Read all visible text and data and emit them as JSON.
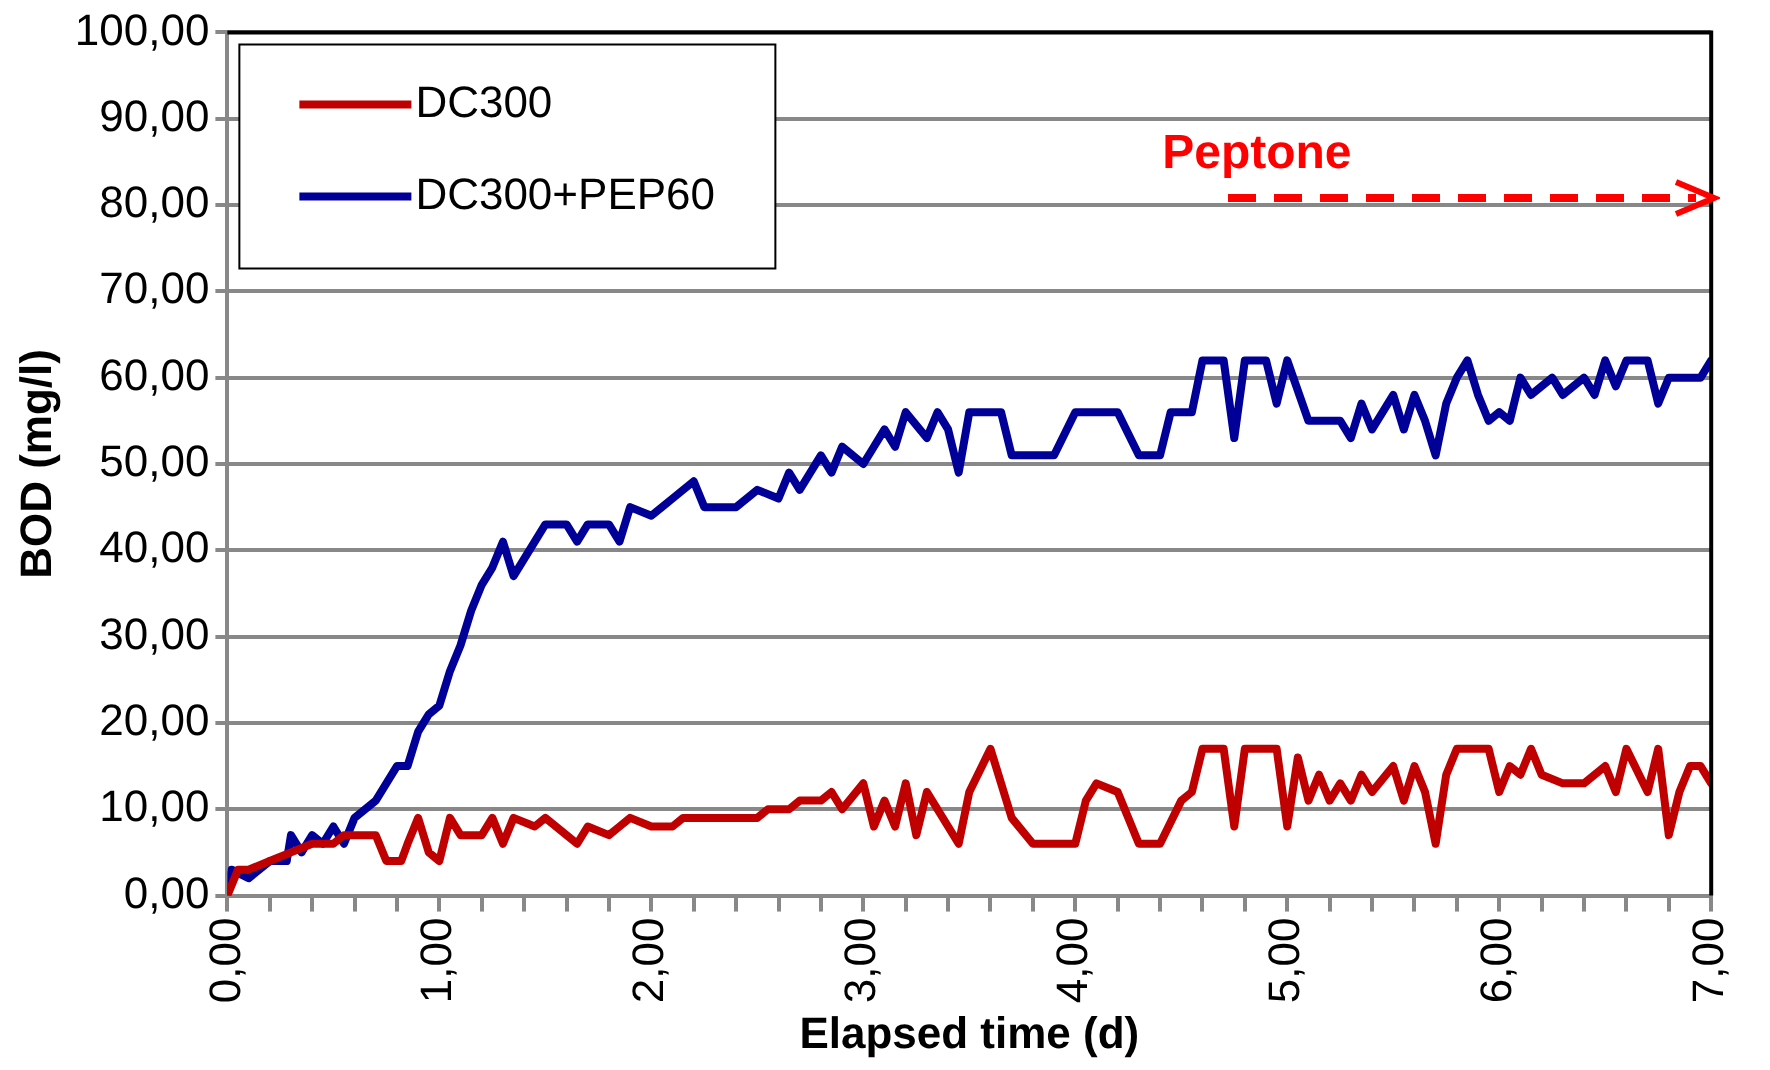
{
  "chart_data": {
    "type": "line",
    "xlabel": "Elapsed time (d)",
    "ylabel": "BOD (mg/l)",
    "xlim": [
      0,
      7
    ],
    "ylim": [
      0,
      100
    ],
    "xticks": [
      {
        "value": 0,
        "label": "0,00"
      },
      {
        "value": 0.2,
        "label": null
      },
      {
        "value": 0.4,
        "label": null
      },
      {
        "value": 0.6,
        "label": null
      },
      {
        "value": 0.8,
        "label": null
      },
      {
        "value": 1,
        "label": "1,00"
      },
      {
        "value": 1.2,
        "label": null
      },
      {
        "value": 1.4,
        "label": null
      },
      {
        "value": 1.6,
        "label": null
      },
      {
        "value": 1.8,
        "label": null
      },
      {
        "value": 2,
        "label": "2,00"
      },
      {
        "value": 2.2,
        "label": null
      },
      {
        "value": 2.4,
        "label": null
      },
      {
        "value": 2.6,
        "label": null
      },
      {
        "value": 2.8,
        "label": null
      },
      {
        "value": 3,
        "label": "3,00"
      },
      {
        "value": 3.2,
        "label": null
      },
      {
        "value": 3.4,
        "label": null
      },
      {
        "value": 3.6,
        "label": null
      },
      {
        "value": 3.8,
        "label": null
      },
      {
        "value": 4,
        "label": "4,00"
      },
      {
        "value": 4.2,
        "label": null
      },
      {
        "value": 4.4,
        "label": null
      },
      {
        "value": 4.6,
        "label": null
      },
      {
        "value": 4.8,
        "label": null
      },
      {
        "value": 5,
        "label": "5,00"
      },
      {
        "value": 5.2,
        "label": null
      },
      {
        "value": 5.4,
        "label": null
      },
      {
        "value": 5.6,
        "label": null
      },
      {
        "value": 5.8,
        "label": null
      },
      {
        "value": 6,
        "label": "6,00"
      },
      {
        "value": 6.2,
        "label": null
      },
      {
        "value": 6.4,
        "label": null
      },
      {
        "value": 6.6,
        "label": null
      },
      {
        "value": 6.8,
        "label": null
      },
      {
        "value": 7,
        "label": "7,00"
      }
    ],
    "yticks": [
      {
        "value": 0,
        "label": "0,00"
      },
      {
        "value": 10,
        "label": "10,00"
      },
      {
        "value": 20,
        "label": "20,00"
      },
      {
        "value": 30,
        "label": "30,00"
      },
      {
        "value": 40,
        "label": "40,00"
      },
      {
        "value": 50,
        "label": "50,00"
      },
      {
        "value": 60,
        "label": "60,00"
      },
      {
        "value": 70,
        "label": "70,00"
      },
      {
        "value": 80,
        "label": "80,00"
      },
      {
        "value": 90,
        "label": "90,00"
      },
      {
        "value": 100,
        "label": "100,00"
      }
    ],
    "grid": "y",
    "legend": "top left",
    "marker": "none",
    "line_style": "solid",
    "annotations": [
      "Peptone"
    ],
    "series": [
      {
        "name": "DC300",
        "color": "#c00000",
        "x": [
          0,
          0.05,
          0.1,
          0.2,
          0.3,
          0.4,
          0.5,
          0.55,
          0.7,
          0.75,
          0.82,
          0.85,
          0.9,
          0.95,
          1.0,
          1.05,
          1.1,
          1.2,
          1.25,
          1.3,
          1.35,
          1.45,
          1.5,
          1.6,
          1.65,
          1.7,
          1.8,
          1.85,
          1.9,
          2.0,
          2.1,
          2.15,
          2.25,
          2.5,
          2.55,
          2.65,
          2.7,
          2.8,
          2.85,
          2.9,
          3.0,
          3.05,
          3.1,
          3.15,
          3.2,
          3.25,
          3.3,
          3.4,
          3.45,
          3.5,
          3.6,
          3.7,
          3.8,
          4.0,
          4.05,
          4.1,
          4.2,
          4.3,
          4.4,
          4.5,
          4.55,
          4.6,
          4.7,
          4.75,
          4.8,
          4.95,
          5.0,
          5.05,
          5.1,
          5.15,
          5.2,
          5.25,
          5.3,
          5.35,
          5.4,
          5.5,
          5.55,
          5.6,
          5.65,
          5.7,
          5.75,
          5.8,
          5.95,
          6.0,
          6.05,
          6.1,
          6.15,
          6.2,
          6.3,
          6.4,
          6.5,
          6.55,
          6.6,
          6.7,
          6.75,
          6.8,
          6.85,
          6.9,
          6.95,
          7.0
        ],
        "values": [
          0,
          3,
          3,
          4,
          5,
          6,
          6,
          7,
          7,
          4,
          4,
          6,
          9,
          5,
          4,
          9,
          7,
          7,
          9,
          6,
          9,
          8,
          9,
          7,
          6,
          8,
          7,
          8,
          9,
          8,
          8,
          9,
          9,
          9,
          10,
          10,
          11,
          11,
          12,
          10,
          13,
          8,
          11,
          8,
          13,
          7,
          12,
          8,
          6,
          12,
          17,
          9,
          6,
          6,
          11,
          13,
          12,
          6,
          6,
          11,
          12,
          17,
          17,
          8,
          17,
          17,
          8,
          16,
          11,
          14,
          11,
          13,
          11,
          14,
          12,
          15,
          11,
          15,
          12,
          6,
          14,
          17,
          17,
          12,
          15,
          14,
          17,
          14,
          13,
          13,
          15,
          12,
          17,
          12,
          17,
          7,
          12,
          15,
          15,
          13
        ]
      },
      {
        "name": "DC300+PEP60",
        "color": "#000099",
        "x": [
          0,
          0.02,
          0.1,
          0.2,
          0.28,
          0.3,
          0.35,
          0.4,
          0.45,
          0.5,
          0.55,
          0.6,
          0.7,
          0.75,
          0.8,
          0.85,
          0.9,
          0.95,
          1.0,
          1.05,
          1.1,
          1.15,
          1.2,
          1.25,
          1.3,
          1.35,
          1.4,
          1.45,
          1.5,
          1.6,
          1.65,
          1.7,
          1.8,
          1.85,
          1.9,
          2.0,
          2.1,
          2.2,
          2.25,
          2.4,
          2.5,
          2.6,
          2.65,
          2.7,
          2.8,
          2.85,
          2.9,
          3.0,
          3.05,
          3.1,
          3.15,
          3.2,
          3.3,
          3.35,
          3.4,
          3.45,
          3.5,
          3.65,
          3.7,
          3.9,
          4.0,
          4.2,
          4.3,
          4.4,
          4.45,
          4.55,
          4.6,
          4.7,
          4.75,
          4.8,
          4.9,
          4.95,
          5.0,
          5.1,
          5.25,
          5.3,
          5.35,
          5.4,
          5.5,
          5.55,
          5.6,
          5.65,
          5.7,
          5.75,
          5.8,
          5.85,
          5.9,
          5.95,
          6.0,
          6.05,
          6.1,
          6.15,
          6.25,
          6.3,
          6.4,
          6.45,
          6.5,
          6.55,
          6.6,
          6.7,
          6.75,
          6.8,
          6.95,
          7.0
        ],
        "values": [
          0,
          3,
          2,
          4,
          4,
          7,
          5,
          7,
          6,
          8,
          6,
          9,
          11,
          13,
          15,
          15,
          19,
          21,
          22,
          26,
          29,
          33,
          36,
          38,
          41,
          37,
          39,
          41,
          43,
          43,
          41,
          43,
          43,
          41,
          45,
          44,
          46,
          48,
          45,
          45,
          47,
          46,
          49,
          47,
          51,
          49,
          52,
          50,
          52,
          54,
          52,
          56,
          53,
          56,
          54,
          49,
          56,
          56,
          51,
          51,
          56,
          56,
          51,
          51,
          56,
          56,
          62,
          62,
          53,
          62,
          62,
          57,
          62,
          55,
          55,
          53,
          57,
          54,
          58,
          54,
          58,
          55,
          51,
          57,
          60,
          62,
          58,
          55,
          56,
          55,
          60,
          58,
          60,
          58,
          60,
          58,
          62,
          59,
          62,
          62,
          57,
          60,
          60,
          62
        ]
      }
    ]
  }
}
